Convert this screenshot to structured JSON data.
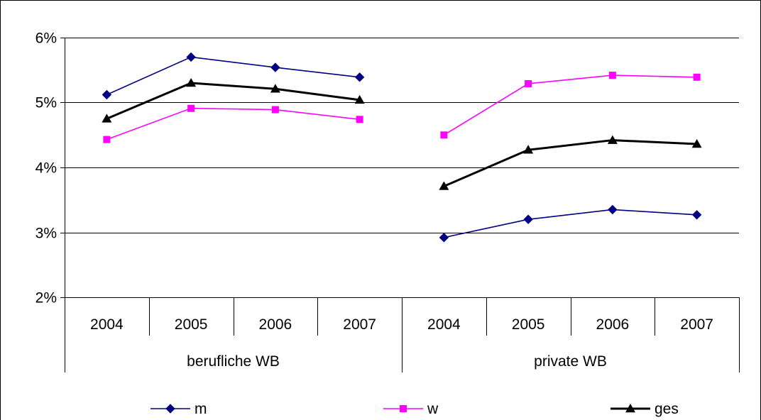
{
  "chart_data": {
    "type": "line",
    "title": "",
    "xlabel": "",
    "ylabel": "",
    "ylim": [
      0.02,
      0.06
    ],
    "y_ticks": [
      "2%",
      "3%",
      "4%",
      "5%",
      "6%"
    ],
    "y_tick_values": [
      0.02,
      0.03,
      0.04,
      0.05,
      0.06
    ],
    "grid": "horizontal",
    "legend_position": "bottom",
    "groups": [
      {
        "label": "berufliche WB",
        "categories": [
          "2004",
          "2005",
          "2006",
          "2007"
        ]
      },
      {
        "label": "private WB",
        "categories": [
          "2004",
          "2005",
          "2006",
          "2007"
        ]
      }
    ],
    "series": [
      {
        "name": "m",
        "color": "#000080",
        "marker": "diamond",
        "segments": [
          [
            0.0512,
            0.057,
            0.0554,
            0.0539
          ],
          [
            0.0292,
            0.032,
            0.0335,
            0.0327
          ]
        ]
      },
      {
        "name": "w",
        "color": "#FF00FF",
        "marker": "square",
        "segments": [
          [
            0.0443,
            0.0491,
            0.0489,
            0.0474
          ],
          [
            0.045,
            0.0529,
            0.0542,
            0.0539
          ]
        ]
      },
      {
        "name": "ges",
        "color": "#000000",
        "marker": "triangle",
        "segments": [
          [
            0.0475,
            0.053,
            0.0521,
            0.0504
          ],
          [
            0.0371,
            0.0427,
            0.0442,
            0.0436
          ]
        ]
      }
    ]
  }
}
